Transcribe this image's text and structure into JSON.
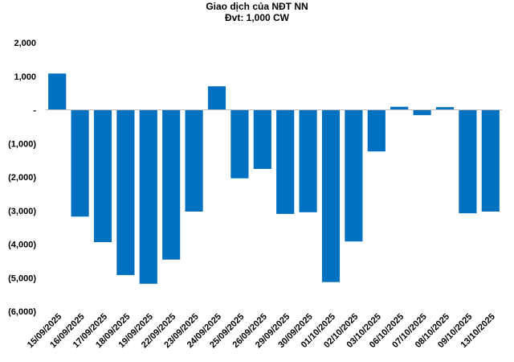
{
  "chart_data": {
    "type": "bar",
    "title": "Giao dịch của NĐT NN",
    "subtitle": "Đvt: 1,000 CW",
    "xlabel": "",
    "ylabel": "",
    "ylim": [
      -6000,
      2000
    ],
    "yticks": [
      2000,
      1000,
      0,
      -1000,
      -2000,
      -3000,
      -4000,
      -5000,
      -6000
    ],
    "ytick_labels": [
      "2,000",
      "1,000",
      "-",
      "(1,000)",
      "(2,000)",
      "(3,000)",
      "(4,000)",
      "(5,000)",
      "(6,000)"
    ],
    "categories": [
      "15/09/2025",
      "16/09/2025",
      "17/09/2025",
      "18/09/2025",
      "19/09/2025",
      "22/09/2025",
      "23/09/2025",
      "24/09/2025",
      "25/09/2025",
      "26/09/2025",
      "29/09/2025",
      "30/09/2025",
      "01/10/2025",
      "02/10/2025",
      "03/10/2025",
      "06/10/2025",
      "07/10/2025",
      "08/10/2025",
      "09/10/2025",
      "13/10/2025"
    ],
    "values": [
      1080,
      -3180,
      -3940,
      -4920,
      -5180,
      -4460,
      -3030,
      700,
      -2040,
      -1760,
      -3100,
      -3050,
      -5130,
      -3920,
      -1240,
      90,
      -160,
      80,
      -3080,
      -3030
    ],
    "grid": false,
    "legend": "none",
    "bar_color": "#0070C0"
  }
}
